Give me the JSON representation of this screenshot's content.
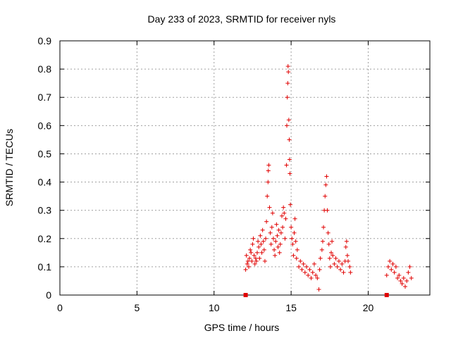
{
  "chart_data": {
    "type": "scatter",
    "title": "Day 233 of 2023, SRMTID for receiver nyls",
    "xlabel": "GPS time / hours",
    "ylabel": "SRMTID / TECUs",
    "xlim": [
      0,
      24
    ],
    "ylim": [
      0,
      0.9
    ],
    "xticks": [
      0,
      5,
      10,
      15,
      20
    ],
    "yticks": [
      0,
      0.1,
      0.2,
      0.3,
      0.4,
      0.5,
      0.6,
      0.7,
      0.8,
      0.9
    ],
    "xtick_labels": [
      "0",
      "5",
      "10",
      "15",
      "20"
    ],
    "ytick_labels": [
      "0",
      "0.1",
      "0.2",
      "0.3",
      "0.4",
      "0.5",
      "0.6",
      "0.7",
      "0.8",
      "0.9"
    ],
    "grid": true,
    "marker": "+",
    "color": "#e00000",
    "series": [
      {
        "name": "SRMTID",
        "points": [
          [
            12.05,
            0.09
          ],
          [
            12.1,
            0.14
          ],
          [
            12.15,
            0.11
          ],
          [
            12.2,
            0.12
          ],
          [
            12.25,
            0.1
          ],
          [
            12.3,
            0.13
          ],
          [
            12.35,
            0.16
          ],
          [
            12.4,
            0.15
          ],
          [
            12.45,
            0.12
          ],
          [
            12.5,
            0.18
          ],
          [
            12.55,
            0.2
          ],
          [
            12.6,
            0.14
          ],
          [
            12.65,
            0.11
          ],
          [
            12.7,
            0.13
          ],
          [
            12.75,
            0.12
          ],
          [
            12.8,
            0.15
          ],
          [
            12.85,
            0.19
          ],
          [
            12.9,
            0.17
          ],
          [
            12.95,
            0.13
          ],
          [
            13.0,
            0.21
          ],
          [
            13.05,
            0.18
          ],
          [
            13.1,
            0.15
          ],
          [
            13.15,
            0.23
          ],
          [
            13.2,
            0.19
          ],
          [
            13.25,
            0.16
          ],
          [
            13.3,
            0.12
          ],
          [
            13.35,
            0.2
          ],
          [
            13.4,
            0.26
          ],
          [
            13.45,
            0.35
          ],
          [
            13.5,
            0.4
          ],
          [
            13.52,
            0.44
          ],
          [
            13.55,
            0.46
          ],
          [
            13.6,
            0.31
          ],
          [
            13.65,
            0.22
          ],
          [
            13.7,
            0.18
          ],
          [
            13.75,
            0.24
          ],
          [
            13.8,
            0.29
          ],
          [
            13.85,
            0.2
          ],
          [
            13.9,
            0.16
          ],
          [
            13.95,
            0.14
          ],
          [
            14.0,
            0.19
          ],
          [
            14.05,
            0.25
          ],
          [
            14.1,
            0.21
          ],
          [
            14.15,
            0.17
          ],
          [
            14.2,
            0.23
          ],
          [
            14.25,
            0.15
          ],
          [
            14.3,
            0.18
          ],
          [
            14.35,
            0.22
          ],
          [
            14.4,
            0.28
          ],
          [
            14.45,
            0.24
          ],
          [
            14.5,
            0.31
          ],
          [
            14.55,
            0.29
          ],
          [
            14.6,
            0.2
          ],
          [
            14.65,
            0.27
          ],
          [
            14.7,
            0.46
          ],
          [
            14.72,
            0.6
          ],
          [
            14.75,
            0.7
          ],
          [
            14.78,
            0.75
          ],
          [
            14.8,
            0.81
          ],
          [
            14.82,
            0.79
          ],
          [
            14.85,
            0.62
          ],
          [
            14.88,
            0.55
          ],
          [
            14.9,
            0.48
          ],
          [
            14.92,
            0.43
          ],
          [
            14.95,
            0.32
          ],
          [
            15.0,
            0.24
          ],
          [
            15.05,
            0.2
          ],
          [
            15.1,
            0.18
          ],
          [
            15.15,
            0.14
          ],
          [
            15.2,
            0.22
          ],
          [
            15.25,
            0.27
          ],
          [
            15.3,
            0.19
          ],
          [
            15.35,
            0.13
          ],
          [
            15.4,
            0.16
          ],
          [
            15.5,
            0.1
          ],
          [
            15.6,
            0.12
          ],
          [
            15.7,
            0.09
          ],
          [
            15.8,
            0.11
          ],
          [
            15.9,
            0.08
          ],
          [
            16.0,
            0.1
          ],
          [
            16.1,
            0.07
          ],
          [
            16.2,
            0.09
          ],
          [
            16.3,
            0.06
          ],
          [
            16.4,
            0.08
          ],
          [
            16.5,
            0.11
          ],
          [
            16.6,
            0.07
          ],
          [
            16.7,
            0.06
          ],
          [
            16.8,
            0.02
          ],
          [
            16.85,
            0.09
          ],
          [
            16.9,
            0.13
          ],
          [
            17.0,
            0.16
          ],
          [
            17.05,
            0.19
          ],
          [
            17.1,
            0.24
          ],
          [
            17.15,
            0.3
          ],
          [
            17.2,
            0.35
          ],
          [
            17.25,
            0.39
          ],
          [
            17.3,
            0.42
          ],
          [
            17.35,
            0.3
          ],
          [
            17.4,
            0.22
          ],
          [
            17.45,
            0.18
          ],
          [
            17.5,
            0.13
          ],
          [
            17.55,
            0.1
          ],
          [
            17.6,
            0.15
          ],
          [
            17.65,
            0.19
          ],
          [
            17.7,
            0.14
          ],
          [
            17.8,
            0.11
          ],
          [
            17.9,
            0.13
          ],
          [
            18.0,
            0.1
          ],
          [
            18.1,
            0.12
          ],
          [
            18.2,
            0.09
          ],
          [
            18.3,
            0.11
          ],
          [
            18.4,
            0.08
          ],
          [
            18.5,
            0.12
          ],
          [
            18.55,
            0.17
          ],
          [
            18.6,
            0.19
          ],
          [
            18.65,
            0.14
          ],
          [
            18.7,
            0.12
          ],
          [
            18.8,
            0.1
          ],
          [
            18.85,
            0.08
          ],
          [
            21.2,
            0.07
          ],
          [
            21.3,
            0.1
          ],
          [
            21.4,
            0.12
          ],
          [
            21.5,
            0.09
          ],
          [
            21.6,
            0.11
          ],
          [
            21.7,
            0.08
          ],
          [
            21.8,
            0.1
          ],
          [
            21.9,
            0.06
          ],
          [
            22.0,
            0.07
          ],
          [
            22.1,
            0.05
          ],
          [
            22.2,
            0.04
          ],
          [
            22.3,
            0.06
          ],
          [
            22.4,
            0.03
          ],
          [
            22.5,
            0.05
          ],
          [
            22.6,
            0.08
          ],
          [
            22.7,
            0.1
          ],
          [
            22.8,
            0.06
          ]
        ]
      }
    ],
    "baseline_markers": [
      [
        12.05,
        0
      ],
      [
        21.2,
        0
      ]
    ]
  }
}
